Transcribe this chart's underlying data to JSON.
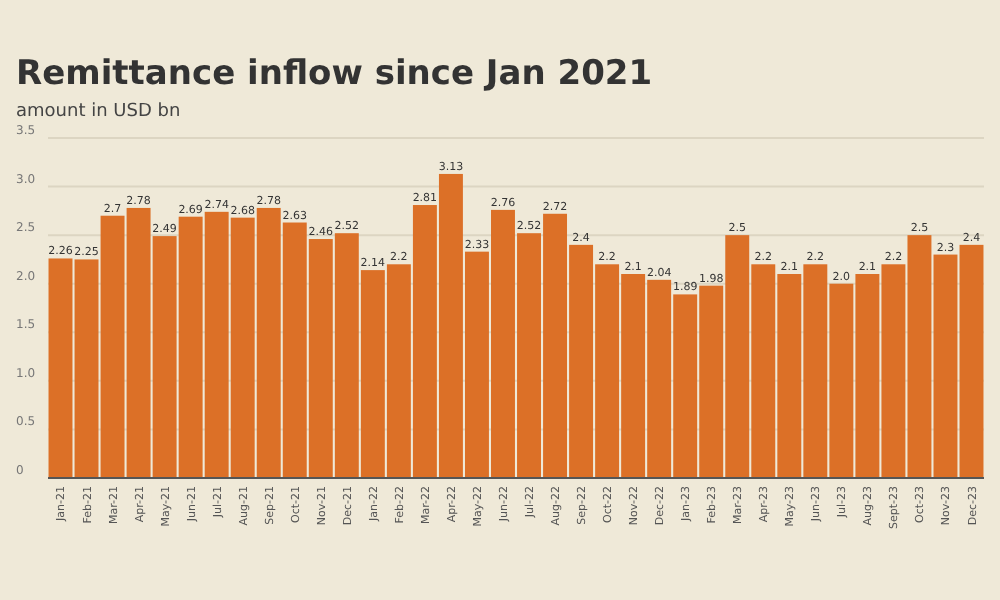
{
  "chart_data": {
    "type": "bar",
    "title": "Remittance inflow since Jan 2021",
    "subtitle": "amount in USD bn",
    "categories": [
      "Jan-21",
      "Feb-21",
      "Mar-21",
      "Apr-21",
      "May-21",
      "Jun-21",
      "Jul-21",
      "Aug-21",
      "Sep-21",
      "Oct-21",
      "Nov-21",
      "Dec-21",
      "Jan-22",
      "Feb-22",
      "Mar-22",
      "Apr-22",
      "May-22",
      "Jun-22",
      "Jul-22",
      "Aug-22",
      "Sep-22",
      "Oct-22",
      "Nov-22",
      "Dec-22",
      "Jan-23",
      "Feb-23",
      "Mar-23",
      "Apr-23",
      "May-23",
      "Jun-23",
      "Jul-23",
      "Aug-23",
      "Sept-23",
      "Oct-23",
      "Nov-23",
      "Dec-23"
    ],
    "values": [
      2.26,
      2.25,
      2.7,
      2.78,
      2.49,
      2.69,
      2.74,
      2.68,
      2.78,
      2.63,
      2.46,
      2.52,
      2.14,
      2.2,
      2.81,
      3.13,
      2.33,
      2.76,
      2.52,
      2.72,
      2.4,
      2.2,
      2.1,
      2.04,
      1.89,
      1.98,
      2.5,
      2.2,
      2.1,
      2.2,
      2.0,
      2.1,
      2.2,
      2.5,
      2.3,
      2.4
    ],
    "value_labels": [
      "2.26",
      "2.25",
      "2.7",
      "2.78",
      "2.49",
      "2.69",
      "2.74",
      "2.68",
      "2.78",
      "2.63",
      "2.46",
      "2.52",
      "2.14",
      "2.2",
      "2.81",
      "3.13",
      "2.33",
      "2.76",
      "2.52",
      "2.72",
      "2.4",
      "2.2",
      "2.1",
      "2.04",
      "1.89",
      "1.98",
      "2.5",
      "2.2",
      "2.1",
      "2.2",
      "2.0",
      "2.1",
      "2.2",
      "2.5",
      "2.3",
      "2.4"
    ],
    "color": "#dc7027",
    "ylim": [
      0,
      3.5
    ],
    "yticks": [
      0,
      {
        "value": 0.5,
        "label": "0.5"
      },
      {
        "value": 1,
        "label": "1.0"
      },
      {
        "value": 1.5,
        "label": "1.5"
      },
      {
        "value": 2,
        "label": "2.0"
      },
      {
        "value": 2.5,
        "label": "2.5"
      },
      {
        "value": 3,
        "label": "3.0"
      },
      {
        "value": 3.5,
        "label": "3.5"
      }
    ],
    "grid": "y"
  }
}
